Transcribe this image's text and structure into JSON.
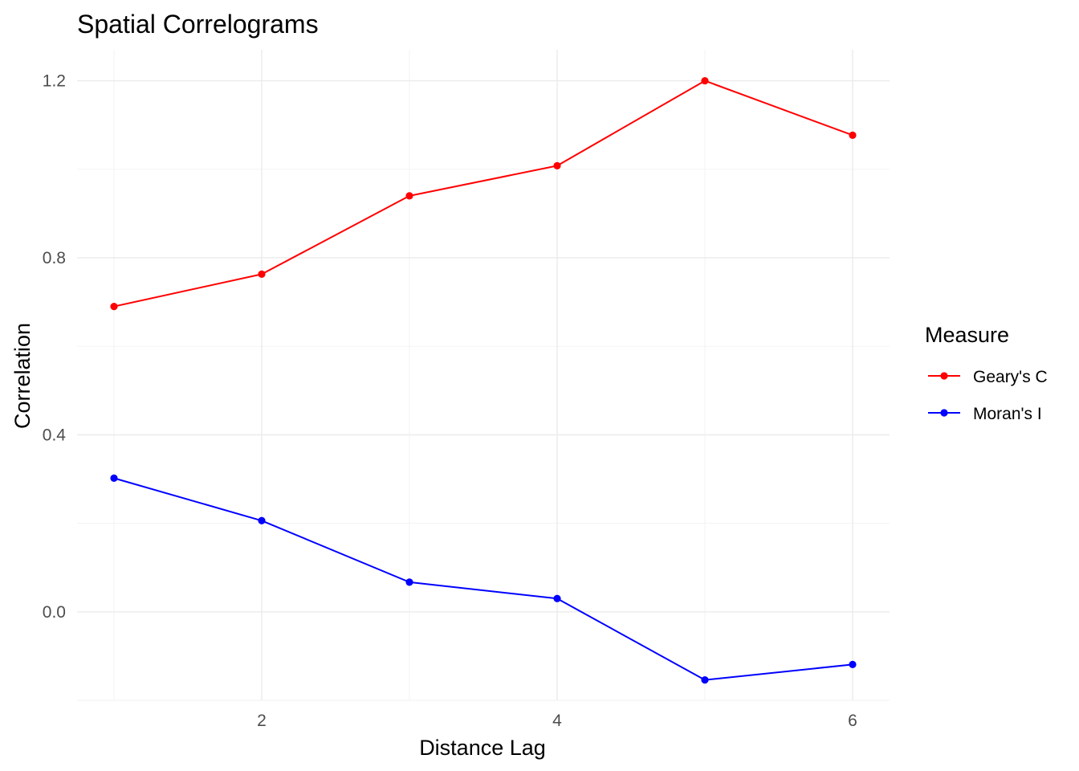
{
  "chart_data": {
    "type": "line",
    "title": "Spatial Correlograms",
    "xlabel": "Distance Lag",
    "ylabel": "Correlation",
    "x": [
      1,
      2,
      3,
      4,
      5,
      6
    ],
    "xlim": [
      0.75,
      6.25
    ],
    "ylim": [
      -0.2,
      1.27
    ],
    "x_ticks": [
      2,
      4,
      6
    ],
    "x_tick_labels": [
      "2",
      "4",
      "6"
    ],
    "y_ticks": [
      0.0,
      0.4,
      0.8,
      1.2
    ],
    "y_tick_labels": [
      "0.0",
      "0.4",
      "0.8",
      "1.2"
    ],
    "grid": true,
    "legend": {
      "title": "Measure",
      "position": "right"
    },
    "series": [
      {
        "name": "Geary's C",
        "color": "#ff0000",
        "values": [
          0.69,
          0.763,
          0.94,
          1.008,
          1.2,
          1.077
        ]
      },
      {
        "name": "Moran's I",
        "color": "#0000ff",
        "values": [
          0.302,
          0.206,
          0.067,
          0.03,
          -0.154,
          -0.119
        ]
      }
    ]
  }
}
